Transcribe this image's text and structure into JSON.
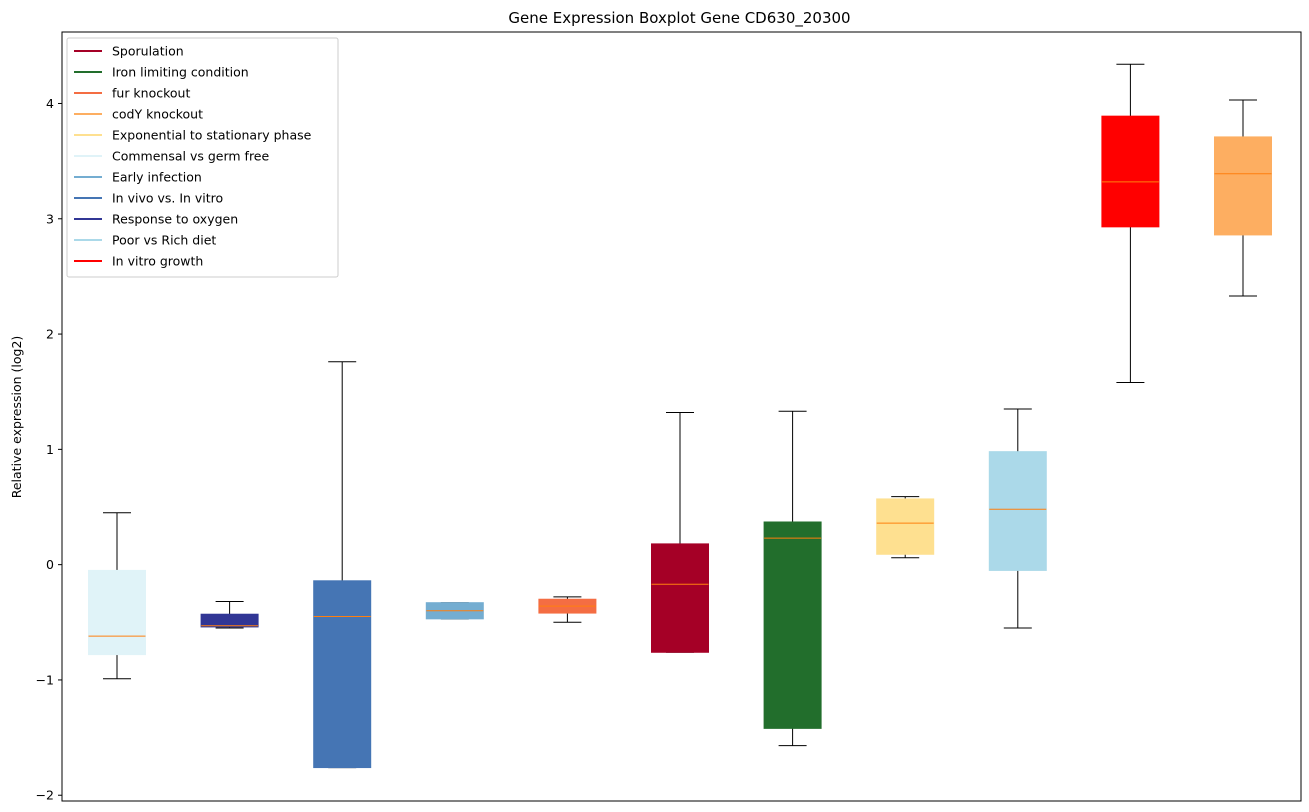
{
  "chart_data": {
    "type": "boxplot",
    "title": "Gene Expression Boxplot Gene CD630_20300",
    "xlabel": "",
    "ylabel": "Relative expression (log2)",
    "ylim": [
      -2.05,
      4.62
    ],
    "yticks": [
      -2,
      -1,
      0,
      1,
      2,
      3,
      4
    ],
    "ytick_labels": [
      "−2",
      "−1",
      "0",
      "1",
      "2",
      "3",
      "4"
    ],
    "grid": false,
    "legend_position": "upper-left",
    "median_color": "#ff7f0e",
    "whisker_color": "#000000",
    "legend": [
      {
        "label": "Sporulation",
        "color": "#a50026"
      },
      {
        "label": "Iron limiting condition",
        "color": "#226e2c"
      },
      {
        "label": "fur knockout",
        "color": "#f46d43"
      },
      {
        "label": "codY knockout",
        "color": "#fdae61"
      },
      {
        "label": "Exponential to stationary phase",
        "color": "#fee090"
      },
      {
        "label": "Commensal vs germ free",
        "color": "#e0f3f8"
      },
      {
        "label": "Early infection",
        "color": "#74add1"
      },
      {
        "label": "In vivo vs. In vitro",
        "color": "#4575b4"
      },
      {
        "label": "Response to oxygen",
        "color": "#313695"
      },
      {
        "label": "Poor vs Rich diet",
        "color": "#abd9e9"
      },
      {
        "label": "In vitro growth",
        "color": "#ff0000"
      }
    ],
    "boxes": [
      {
        "group": "Commensal vs germ free",
        "color": "#e0f3f8",
        "whislo": -0.99,
        "q1": -0.78,
        "med": -0.62,
        "q3": -0.05,
        "whishi": 0.45
      },
      {
        "group": "Response to oxygen",
        "color": "#313695",
        "whislo": -0.55,
        "q1": -0.54,
        "med": -0.53,
        "q3": -0.43,
        "whishi": -0.32
      },
      {
        "group": "In vivo vs. In vitro",
        "color": "#4575b4",
        "whislo": -1.76,
        "q1": -1.76,
        "med": -0.45,
        "q3": -0.14,
        "whishi": 1.76
      },
      {
        "group": "Early infection",
        "color": "#74add1",
        "whislo": -0.47,
        "q1": -0.47,
        "med": -0.4,
        "q3": -0.33,
        "whishi": -0.33
      },
      {
        "group": "fur knockout",
        "color": "#f46d43",
        "whislo": -0.5,
        "q1": -0.42,
        "med": -0.36,
        "q3": -0.3,
        "whishi": -0.28
      },
      {
        "group": "Sporulation",
        "color": "#a50026",
        "whislo": -0.76,
        "q1": -0.76,
        "med": -0.17,
        "q3": 0.18,
        "whishi": 1.32
      },
      {
        "group": "Iron limiting condition",
        "color": "#226e2c",
        "whislo": -1.57,
        "q1": -1.42,
        "med": 0.23,
        "q3": 0.37,
        "whishi": 1.33
      },
      {
        "group": "Exponential to stationary phase",
        "color": "#fee090",
        "whislo": 0.06,
        "q1": 0.09,
        "med": 0.36,
        "q3": 0.57,
        "whishi": 0.59
      },
      {
        "group": "Poor vs Rich diet",
        "color": "#abd9e9",
        "whislo": -0.55,
        "q1": -0.05,
        "med": 0.48,
        "q3": 0.98,
        "whishi": 1.35
      },
      {
        "group": "In vitro growth",
        "color": "#ff0000",
        "whislo": 1.58,
        "q1": 2.93,
        "med": 3.32,
        "q3": 3.89,
        "whishi": 4.34
      },
      {
        "group": "codY knockout",
        "color": "#fdae61",
        "whislo": 2.33,
        "q1": 2.86,
        "med": 3.39,
        "q3": 3.71,
        "whishi": 4.03
      }
    ]
  }
}
